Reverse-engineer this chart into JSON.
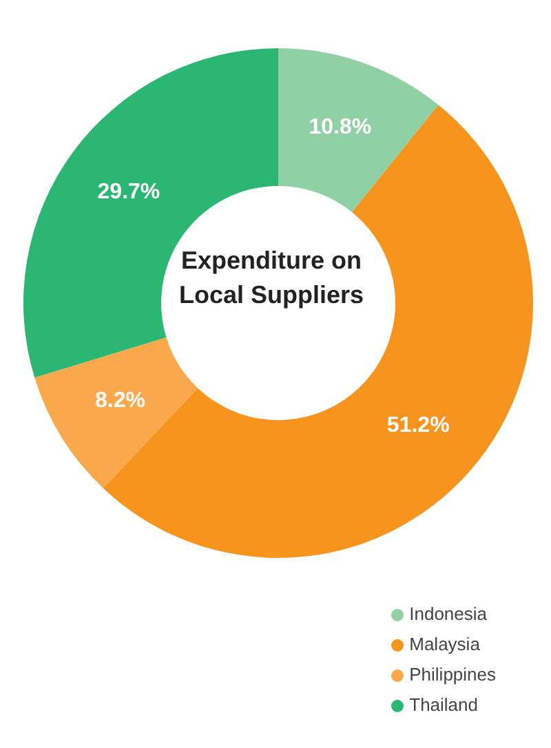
{
  "chart_data": {
    "type": "donut",
    "title": "Expenditure on Local Suppliers",
    "categories": [
      "Malaysia",
      "Philippines",
      "Thailand",
      "Indonesia"
    ],
    "values": [
      51.2,
      8.2,
      29.7,
      10.8
    ],
    "colors": [
      "#f7941d",
      "#f9a94b",
      "#2bb673",
      "#8fd1a4"
    ],
    "value_labels": [
      "51.2%",
      "8.2%",
      "29.7%",
      "10.8%"
    ],
    "legend": "bottom right"
  }
}
